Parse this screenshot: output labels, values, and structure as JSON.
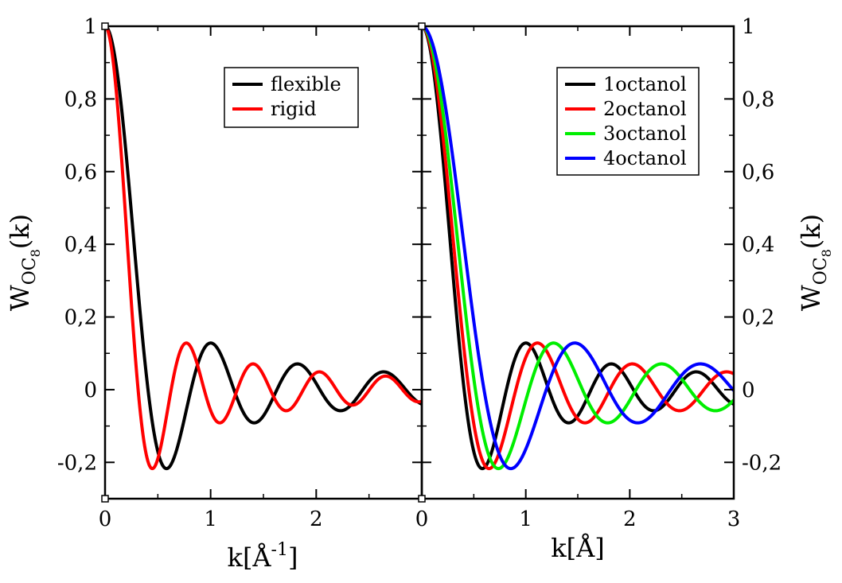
{
  "chart_data": [
    {
      "type": "line",
      "panel": "left",
      "ylabel": {
        "main": "W",
        "sub": "OC",
        "subsub": "8",
        "suffix": "(k)"
      },
      "xlabel": {
        "main": "k[Å",
        "sup": "-1",
        "suffix": "]"
      },
      "xlim": [
        0,
        3
      ],
      "ylim": [
        -0.3,
        1.0
      ],
      "x_ticks": [
        0,
        1,
        2
      ],
      "x_tick_labels": [
        "0",
        "1",
        "2"
      ],
      "y_ticks": [
        -0.2,
        0,
        0.2,
        0.4,
        0.6,
        0.8,
        1.0
      ],
      "y_tick_labels": [
        "-0,2",
        "0",
        "0,2",
        "0,4",
        "0,6",
        "0,8",
        "1"
      ],
      "legend_position": "top-right",
      "series": [
        {
          "name": "flexible",
          "color": "#000000",
          "scale": 1.0,
          "values_x": [
            0,
            0.58,
            1.0,
            1.42,
            1.82,
            2.22,
            2.68,
            3.0
          ],
          "values_y": [
            1.0,
            -0.22,
            0.13,
            -0.09,
            0.07,
            -0.06,
            0.05,
            -0.03
          ]
        },
        {
          "name": "rigid",
          "color": "#ff0000",
          "scale": 1.3,
          "values_x": [
            0,
            0.45,
            0.77,
            1.09,
            1.43,
            1.74,
            2.04,
            2.37,
            2.7,
            3.0
          ],
          "values_y": [
            1.0,
            -0.22,
            0.13,
            -0.09,
            0.07,
            -0.06,
            0.05,
            -0.04,
            0.04,
            -0.03
          ]
        }
      ]
    },
    {
      "type": "line",
      "panel": "right",
      "ylabel": {
        "main": "W",
        "sub": "OC",
        "subsub": "8",
        "suffix": "(k)"
      },
      "xlabel": {
        "main": "k[Å]",
        "sup": "",
        "suffix": ""
      },
      "xlim": [
        0,
        3
      ],
      "ylim": [
        -0.3,
        1.0
      ],
      "x_ticks": [
        0,
        1,
        2,
        3
      ],
      "x_tick_labels": [
        "0",
        "1",
        "2",
        "3"
      ],
      "y_ticks": [
        -0.2,
        0,
        0.2,
        0.4,
        0.6,
        0.8,
        1.0
      ],
      "y_tick_labels": [
        "-0,2",
        "0",
        "0,2",
        "0,4",
        "0,6",
        "0,8",
        "1"
      ],
      "legend_position": "top-right",
      "series": [
        {
          "name": "1octanol",
          "color": "#000000",
          "scale": 1.0,
          "values_x": [
            0,
            0.58,
            1.0,
            1.42,
            1.82,
            2.22,
            2.68,
            3.0
          ],
          "values_y": [
            1.0,
            -0.22,
            0.13,
            -0.09,
            0.07,
            -0.06,
            0.05,
            -0.04
          ]
        },
        {
          "name": "2octanol",
          "color": "#ff0000",
          "scale": 0.9,
          "values_x": [
            0,
            0.65,
            1.12,
            1.58,
            2.03,
            2.47,
            2.95
          ],
          "values_y": [
            1.0,
            -0.22,
            0.13,
            -0.09,
            0.07,
            -0.06,
            0.05
          ]
        },
        {
          "name": "3octanol",
          "color": "#00ee00",
          "scale": 0.79,
          "values_x": [
            0,
            0.74,
            1.29,
            1.8,
            2.32,
            2.8
          ],
          "values_y": [
            1.0,
            -0.22,
            0.13,
            -0.09,
            0.07,
            -0.06
          ]
        },
        {
          "name": "4octanol",
          "color": "#0000ff",
          "scale": 0.68,
          "values_x": [
            0,
            0.86,
            1.5,
            2.1,
            2.72,
            3.0
          ],
          "values_y": [
            1.0,
            -0.22,
            0.13,
            -0.09,
            0.07,
            0.02
          ]
        }
      ]
    }
  ]
}
